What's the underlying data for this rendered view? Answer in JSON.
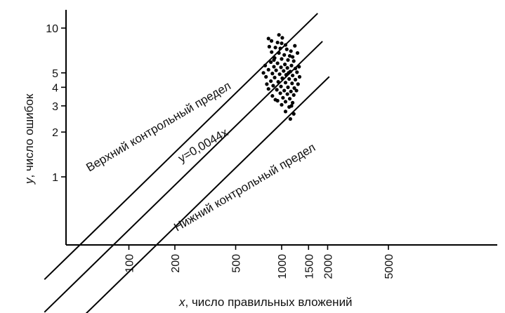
{
  "chart_data": {
    "type": "scatter",
    "scale": "log-log",
    "title": "",
    "xlabel": {
      "var": "x",
      "text": ", число правильных вложений"
    },
    "ylabel": {
      "var": "y",
      "text": ", число ошибок"
    },
    "xticks": [
      {
        "value": 100,
        "label": "100"
      },
      {
        "value": 200,
        "label": "200"
      },
      {
        "value": 500,
        "label": "500"
      },
      {
        "value": 1000,
        "label": "1000"
      },
      {
        "value": 1500,
        "label": "1500"
      },
      {
        "value": 2000,
        "label": "2000"
      },
      {
        "value": 5000,
        "label": "5000"
      }
    ],
    "yticks": [
      {
        "value": 1,
        "label": "1"
      },
      {
        "value": 2,
        "label": "2"
      },
      {
        "value": 3,
        "label": "3"
      },
      {
        "value": 4,
        "label": "4"
      },
      {
        "value": 5,
        "label": "5"
      },
      {
        "value": 10,
        "label": "10"
      }
    ],
    "lines": [
      {
        "name": "upper",
        "label": "Верхний контрольный предел",
        "coef": 0.0073,
        "x_start": 28,
        "x_end": 1720
      },
      {
        "name": "center",
        "label": "y=0,0044x",
        "coef": 0.0044,
        "x_start": 28,
        "x_end": 1850
      },
      {
        "name": "lower",
        "label": "Нижний контрольный предел",
        "coef": 0.0023,
        "x_start": 50,
        "x_end": 2050
      }
    ],
    "points": [
      [
        858,
        8.2
      ],
      [
        940,
        8.0
      ],
      [
        1000,
        7.9
      ],
      [
        1060,
        7.7
      ],
      [
        910,
        7.4
      ],
      [
        980,
        7.3
      ],
      [
        1080,
        7.2
      ],
      [
        1150,
        7.0
      ],
      [
        860,
        6.9
      ],
      [
        960,
        6.8
      ],
      [
        1040,
        6.6
      ],
      [
        1130,
        6.5
      ],
      [
        900,
        6.3
      ],
      [
        1000,
        6.2
      ],
      [
        1100,
        6.1
      ],
      [
        1200,
        6.0
      ],
      [
        850,
        5.9
      ],
      [
        940,
        5.8
      ],
      [
        1050,
        5.7
      ],
      [
        1160,
        5.6
      ],
      [
        890,
        5.5
      ],
      [
        990,
        5.45
      ],
      [
        1090,
        5.4
      ],
      [
        1230,
        5.35
      ],
      [
        820,
        5.25
      ],
      [
        920,
        5.2
      ],
      [
        1030,
        5.15
      ],
      [
        1140,
        5.1
      ],
      [
        1260,
        5.05
      ],
      [
        870,
        4.95
      ],
      [
        970,
        4.9
      ],
      [
        1070,
        4.85
      ],
      [
        1180,
        4.8
      ],
      [
        790,
        4.7
      ],
      [
        900,
        4.65
      ],
      [
        1010,
        4.6
      ],
      [
        1120,
        4.55
      ],
      [
        1230,
        4.5
      ],
      [
        850,
        4.4
      ],
      [
        950,
        4.35
      ],
      [
        1060,
        4.3
      ],
      [
        1170,
        4.25
      ],
      [
        1280,
        4.2
      ],
      [
        880,
        4.1
      ],
      [
        990,
        4.05
      ],
      [
        1100,
        4.0
      ],
      [
        1210,
        3.95
      ],
      [
        820,
        3.9
      ],
      [
        930,
        3.85
      ],
      [
        1040,
        3.8
      ],
      [
        1150,
        3.75
      ],
      [
        980,
        3.65
      ],
      [
        1090,
        3.6
      ],
      [
        1200,
        3.55
      ],
      [
        870,
        3.5
      ],
      [
        1020,
        3.4
      ],
      [
        1130,
        3.35
      ],
      [
        940,
        3.25
      ],
      [
        1060,
        3.2
      ],
      [
        1180,
        3.15
      ],
      [
        1000,
        3.05
      ],
      [
        1120,
        2.95
      ],
      [
        1060,
        2.75
      ],
      [
        1200,
        2.65
      ],
      [
        1140,
        2.45
      ],
      [
        820,
        8.5
      ],
      [
        1010,
        8.6
      ],
      [
        1180,
        6.4
      ],
      [
        780,
        5.6
      ],
      [
        1300,
        5.5
      ],
      [
        760,
        5.0
      ],
      [
        1310,
        4.7
      ],
      [
        800,
        4.2
      ],
      [
        1250,
        3.8
      ],
      [
        910,
        3.3
      ],
      [
        1160,
        3.0
      ],
      [
        1270,
        6.8
      ],
      [
        830,
        7.5
      ],
      [
        1220,
        7.6
      ],
      [
        960,
        9.0
      ],
      [
        890,
        6.1
      ],
      [
        1110,
        5.0
      ]
    ]
  }
}
